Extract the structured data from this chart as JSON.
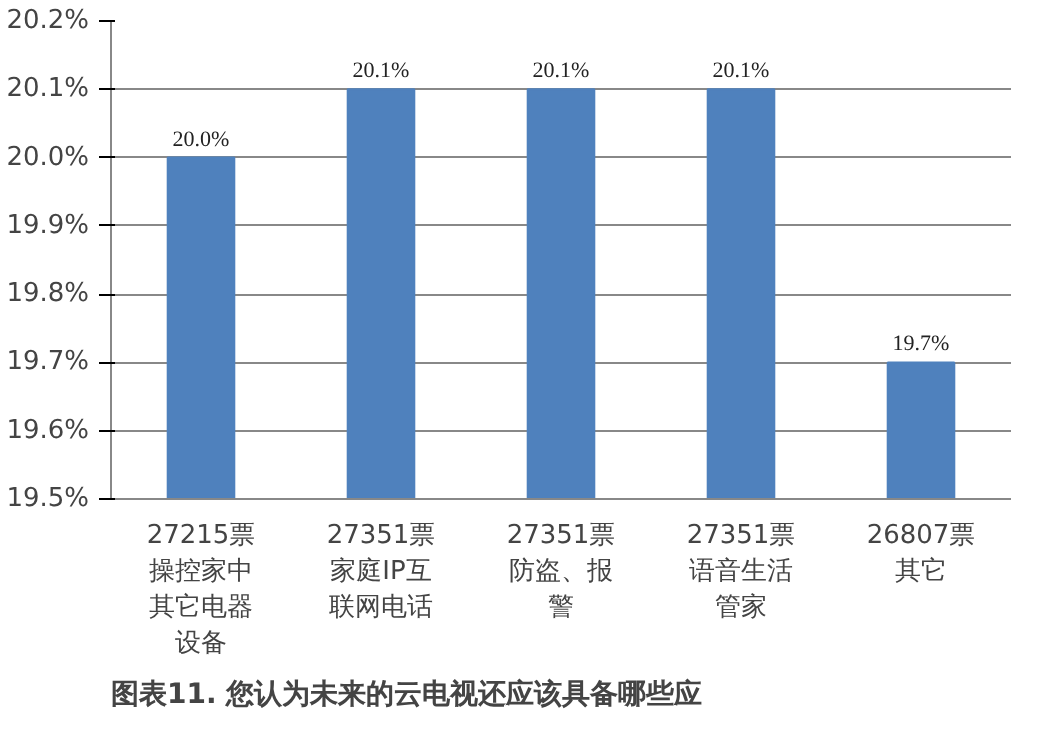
{
  "chart_data": {
    "type": "bar",
    "title": "图表11. 您认为未来的云电视还应该具备哪些应",
    "categories": [
      "27215票操控家中其它电器设备",
      "27351票家庭IP互联网电话",
      "27351票防盗、报警",
      "27351票语音生活管家",
      "26807票其它"
    ],
    "values": [
      20.0,
      20.1,
      20.1,
      20.1,
      19.7
    ],
    "value_labels": [
      "20.0%",
      "20.1%",
      "20.1%",
      "20.1%",
      "19.7%"
    ],
    "color": "#4f81bd",
    "ylim": [
      19.5,
      20.2
    ],
    "yticks": [
      {
        "value": 19.5,
        "label": "19.5%"
      },
      {
        "value": 19.6,
        "label": "19.6%"
      },
      {
        "value": 19.7,
        "label": "19.7%"
      },
      {
        "value": 19.8,
        "label": "19.8%"
      },
      {
        "value": 19.9,
        "label": "19.9%"
      },
      {
        "value": 20.0,
        "label": "20.0%"
      },
      {
        "value": 20.1,
        "label": "20.1%"
      },
      {
        "value": 20.2,
        "label": "20.2%"
      }
    ],
    "grid": "y"
  }
}
